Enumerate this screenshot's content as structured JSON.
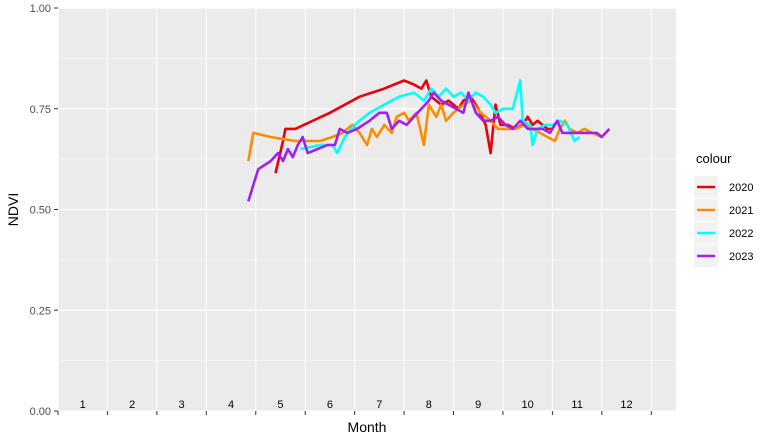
{
  "chart_data": {
    "type": "line",
    "xlabel": "Month",
    "ylabel": "NDVI",
    "xlim": [
      0,
      12.5
    ],
    "ylim": [
      0,
      1
    ],
    "x_tick_labels": [
      "1",
      "2",
      "3",
      "4",
      "5",
      "6",
      "7",
      "8",
      "9",
      "10",
      "11",
      "12"
    ],
    "y_ticks": [
      0,
      0.25,
      0.5,
      0.75,
      1.0
    ],
    "y_tick_labels": [
      "0.00",
      "0.25",
      "0.50",
      "0.75",
      "1.00"
    ],
    "grid": true,
    "legend": {
      "title": "colour",
      "placement": "right"
    },
    "series": [
      {
        "name": "2020",
        "color": "#e8000b",
        "points": [
          [
            4.4,
            0.59
          ],
          [
            4.55,
            0.67
          ],
          [
            4.6,
            0.7
          ],
          [
            4.8,
            0.7
          ],
          [
            5.5,
            0.74
          ],
          [
            6.1,
            0.78
          ],
          [
            6.6,
            0.8
          ],
          [
            7.0,
            0.82
          ],
          [
            7.2,
            0.81
          ],
          [
            7.35,
            0.8
          ],
          [
            7.45,
            0.82
          ],
          [
            7.55,
            0.78
          ],
          [
            7.75,
            0.76
          ],
          [
            7.9,
            0.77
          ],
          [
            8.1,
            0.75
          ],
          [
            8.2,
            0.77
          ],
          [
            8.35,
            0.78
          ],
          [
            8.5,
            0.75
          ],
          [
            8.65,
            0.71
          ],
          [
            8.75,
            0.64
          ],
          [
            8.85,
            0.76
          ],
          [
            8.95,
            0.71
          ],
          [
            9.1,
            0.71
          ],
          [
            9.25,
            0.7
          ],
          [
            9.4,
            0.71
          ],
          [
            9.5,
            0.73
          ],
          [
            9.6,
            0.71
          ],
          [
            9.7,
            0.72
          ],
          [
            9.8,
            0.71
          ],
          [
            9.9,
            0.7
          ],
          [
            10.0,
            0.7
          ]
        ]
      },
      {
        "name": "2021",
        "color": "#ff8c00",
        "points": [
          [
            3.85,
            0.62
          ],
          [
            3.95,
            0.69
          ],
          [
            4.3,
            0.68
          ],
          [
            4.8,
            0.67
          ],
          [
            5.1,
            0.67
          ],
          [
            5.3,
            0.67
          ],
          [
            5.55,
            0.68
          ],
          [
            5.75,
            0.69
          ],
          [
            5.95,
            0.71
          ],
          [
            6.1,
            0.69
          ],
          [
            6.25,
            0.66
          ],
          [
            6.35,
            0.7
          ],
          [
            6.45,
            0.68
          ],
          [
            6.6,
            0.71
          ],
          [
            6.75,
            0.69
          ],
          [
            6.85,
            0.73
          ],
          [
            7.0,
            0.74
          ],
          [
            7.1,
            0.72
          ],
          [
            7.25,
            0.74
          ],
          [
            7.4,
            0.66
          ],
          [
            7.5,
            0.76
          ],
          [
            7.65,
            0.73
          ],
          [
            7.75,
            0.76
          ],
          [
            7.85,
            0.72
          ],
          [
            8.0,
            0.74
          ],
          [
            8.2,
            0.76
          ],
          [
            8.35,
            0.77
          ],
          [
            8.55,
            0.74
          ],
          [
            8.75,
            0.72
          ],
          [
            8.9,
            0.7
          ],
          [
            9.05,
            0.7
          ],
          [
            9.25,
            0.7
          ],
          [
            9.45,
            0.71
          ],
          [
            9.6,
            0.7
          ],
          [
            9.75,
            0.69
          ],
          [
            9.9,
            0.68
          ],
          [
            10.05,
            0.67
          ],
          [
            10.15,
            0.7
          ],
          [
            10.25,
            0.72
          ],
          [
            10.35,
            0.7
          ],
          [
            10.5,
            0.69
          ],
          [
            10.65,
            0.7
          ],
          [
            10.8,
            0.69
          ],
          [
            11.0,
            0.68
          ]
        ]
      },
      {
        "name": "2022",
        "color": "#00ffff",
        "points": [
          [
            4.9,
            0.65
          ],
          [
            5.3,
            0.66
          ],
          [
            5.55,
            0.66
          ],
          [
            5.65,
            0.64
          ],
          [
            5.8,
            0.68
          ],
          [
            6.0,
            0.71
          ],
          [
            6.3,
            0.74
          ],
          [
            6.6,
            0.76
          ],
          [
            6.9,
            0.78
          ],
          [
            7.2,
            0.79
          ],
          [
            7.4,
            0.77
          ],
          [
            7.55,
            0.8
          ],
          [
            7.7,
            0.78
          ],
          [
            7.85,
            0.8
          ],
          [
            8.0,
            0.78
          ],
          [
            8.15,
            0.79
          ],
          [
            8.3,
            0.77
          ],
          [
            8.45,
            0.79
          ],
          [
            8.6,
            0.78
          ],
          [
            8.75,
            0.76
          ],
          [
            8.85,
            0.74
          ],
          [
            9.0,
            0.75
          ],
          [
            9.2,
            0.75
          ],
          [
            9.35,
            0.82
          ],
          [
            9.4,
            0.72
          ],
          [
            9.55,
            0.71
          ],
          [
            9.6,
            0.66
          ],
          [
            9.7,
            0.7
          ],
          [
            9.85,
            0.71
          ],
          [
            10.0,
            0.71
          ],
          [
            10.15,
            0.72
          ],
          [
            10.3,
            0.71
          ],
          [
            10.45,
            0.67
          ],
          [
            10.55,
            0.68
          ]
        ]
      },
      {
        "name": "2023",
        "color": "#a020f0",
        "points": [
          [
            3.85,
            0.52
          ],
          [
            4.05,
            0.6
          ],
          [
            4.3,
            0.62
          ],
          [
            4.45,
            0.64
          ],
          [
            4.55,
            0.62
          ],
          [
            4.65,
            0.65
          ],
          [
            4.75,
            0.63
          ],
          [
            4.85,
            0.66
          ],
          [
            4.95,
            0.68
          ],
          [
            5.05,
            0.64
          ],
          [
            5.25,
            0.65
          ],
          [
            5.45,
            0.66
          ],
          [
            5.6,
            0.66
          ],
          [
            5.7,
            0.7
          ],
          [
            5.85,
            0.69
          ],
          [
            6.05,
            0.7
          ],
          [
            6.3,
            0.72
          ],
          [
            6.5,
            0.74
          ],
          [
            6.65,
            0.74
          ],
          [
            6.75,
            0.7
          ],
          [
            6.9,
            0.72
          ],
          [
            7.05,
            0.71
          ],
          [
            7.2,
            0.73
          ],
          [
            7.35,
            0.75
          ],
          [
            7.5,
            0.77
          ],
          [
            7.6,
            0.79
          ],
          [
            7.75,
            0.77
          ],
          [
            7.9,
            0.76
          ],
          [
            8.05,
            0.75
          ],
          [
            8.2,
            0.74
          ],
          [
            8.3,
            0.79
          ],
          [
            8.45,
            0.74
          ],
          [
            8.6,
            0.72
          ],
          [
            8.75,
            0.72
          ],
          [
            8.9,
            0.73
          ],
          [
            9.05,
            0.71
          ],
          [
            9.2,
            0.7
          ],
          [
            9.35,
            0.72
          ],
          [
            9.5,
            0.7
          ],
          [
            9.65,
            0.7
          ],
          [
            9.8,
            0.7
          ],
          [
            9.95,
            0.69
          ],
          [
            10.1,
            0.72
          ],
          [
            10.2,
            0.69
          ],
          [
            10.35,
            0.69
          ],
          [
            10.5,
            0.69
          ],
          [
            10.7,
            0.69
          ],
          [
            10.9,
            0.69
          ],
          [
            11.0,
            0.68
          ],
          [
            11.15,
            0.7
          ]
        ]
      }
    ]
  }
}
